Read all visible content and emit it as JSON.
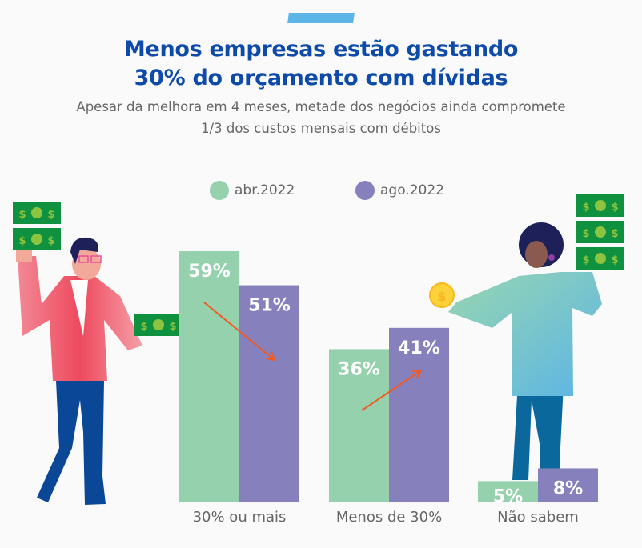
{
  "header": {
    "title_line1": "Menos empresas estão gastando",
    "title_line2": "30% do orçamento com dívidas",
    "subtitle_line1": "Apesar da melhora em 4 meses, metade dos negócios ainda compromete",
    "subtitle_line2": "1/3 dos custos mensais com débitos"
  },
  "colors": {
    "accent": "#5bb5e6",
    "title": "#0e4aa8",
    "abr2022": "#96d1ae",
    "ago2022": "#8680bc",
    "arrow": "#f05a22"
  },
  "chart_data": {
    "type": "bar",
    "title": "Menos empresas estão gastando 30% do orçamento com dívidas",
    "subtitle": "Apesar da melhora em 4 meses, metade dos negócios ainda compromete 1/3 dos custos mensais com débitos",
    "categories": [
      "30% ou mais",
      "Menos de 30%",
      "Não sabem"
    ],
    "series": [
      {
        "name": "abr.2022",
        "values": [
          59,
          36,
          5
        ],
        "labels": [
          "59%",
          "36%",
          "5%"
        ]
      },
      {
        "name": "ago.2022",
        "values": [
          51,
          41,
          8
        ],
        "labels": [
          "51%",
          "41%",
          "8%"
        ]
      }
    ],
    "xlabel": "",
    "ylabel": "",
    "ylim": [
      0,
      59
    ],
    "grid": false,
    "legend": "top-center",
    "annotations": [
      {
        "type": "arrow",
        "direction": "down",
        "category": "30% ou mais"
      },
      {
        "type": "arrow",
        "direction": "up",
        "category": "Menos de 30%"
      }
    ]
  }
}
